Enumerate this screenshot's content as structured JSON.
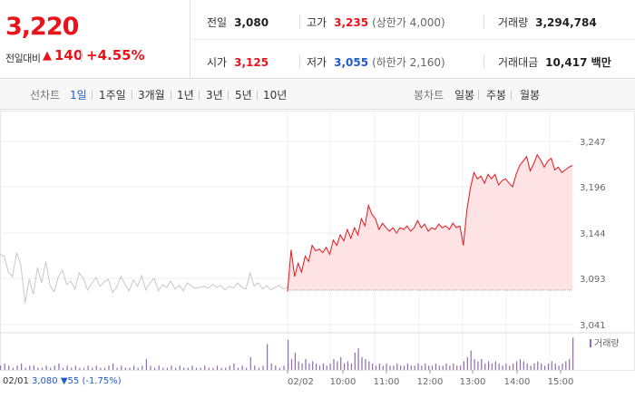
{
  "price": {
    "current": "3,220",
    "change_label": "전일대비",
    "change_arrow": "▲",
    "change_value": "140",
    "change_pct": "+4.55%"
  },
  "stats": {
    "prev_close_label": "전일",
    "prev_close": "3,080",
    "high_label": "고가",
    "high": "3,235",
    "upper_limit": "(상한가 4,000)",
    "volume_label": "거래량",
    "volume": "3,294,784",
    "open_label": "시가",
    "open": "3,125",
    "low_label": "저가",
    "low": "3,055",
    "lower_limit": "(하한가 2,160)",
    "turnover_label": "거래대금",
    "turnover": "10,417 백만"
  },
  "line_tabs": {
    "title": "선차트",
    "items": [
      "1일",
      "1주일",
      "3개월",
      "1년",
      "3년",
      "5년",
      "10년"
    ],
    "active": "1일"
  },
  "candle_tabs": {
    "title": "봉차트",
    "items": [
      "일봉",
      "주봉",
      "월봉"
    ]
  },
  "prev_day_legend": {
    "date": "02/01",
    "close": "3,080",
    "arrow": "▼",
    "change": "55",
    "pct": "(-1.75%)"
  },
  "colors": {
    "up": "#e8141c",
    "down": "#1f5bd1",
    "prev_line": "#c8c8c8",
    "fill": "#fde3e3",
    "volume": "#8e6bb3"
  },
  "chart_data": {
    "type": "line",
    "title": "",
    "y_ticks": [
      3041,
      3093,
      3144,
      3196,
      3247
    ],
    "y_tick_labels": [
      "3,041",
      "3,093",
      "3,144",
      "3,196",
      "3,247"
    ],
    "ylim": [
      3041,
      3247
    ],
    "x_ticks": [
      "02/01",
      "02/02",
      "10:00",
      "11:00",
      "12:00",
      "13:00",
      "14:00",
      "15:00"
    ],
    "baseline": 3080,
    "legend_volume": "거래량",
    "series": [
      {
        "name": "02/01",
        "style": "grey",
        "values": [
          3120,
          3118,
          3100,
          3095,
          3122,
          3108,
          3065,
          3092,
          3075,
          3105,
          3088,
          3112,
          3085,
          3078,
          3095,
          3102,
          3086,
          3090,
          3081,
          3099,
          3093,
          3080,
          3087,
          3094,
          3084,
          3089,
          3092,
          3077,
          3083,
          3095,
          3086,
          3079,
          3091,
          3084,
          3096,
          3080,
          3088,
          3093,
          3079,
          3086,
          3083,
          3090,
          3081,
          3085,
          3079,
          3088,
          3084,
          3082,
          3083,
          3084,
          3082,
          3086,
          3083,
          3085,
          3080,
          3084,
          3082,
          3088,
          3083,
          3081,
          3099,
          3084,
          3088,
          3081,
          3085,
          3080,
          3083,
          3085,
          3081,
          3083
        ]
      },
      {
        "name": "02/02",
        "style": "red",
        "values": [
          3078,
          3125,
          3095,
          3110,
          3100,
          3118,
          3112,
          3130,
          3124,
          3126,
          3122,
          3128,
          3120,
          3136,
          3130,
          3142,
          3135,
          3148,
          3138,
          3150,
          3142,
          3160,
          3152,
          3175,
          3165,
          3160,
          3148,
          3155,
          3150,
          3146,
          3150,
          3144,
          3150,
          3148,
          3152,
          3146,
          3150,
          3158,
          3150,
          3154,
          3146,
          3150,
          3148,
          3154,
          3150,
          3152,
          3148,
          3155,
          3150,
          3152,
          3130,
          3170,
          3195,
          3212,
          3205,
          3208,
          3200,
          3210,
          3205,
          3210,
          3198,
          3203,
          3205,
          3200,
          3196,
          3210,
          3220,
          3225,
          3230,
          3214,
          3222,
          3232,
          3226,
          3218,
          3225,
          3228,
          3215,
          3218,
          3212,
          3215,
          3218,
          3220
        ]
      }
    ],
    "volume": {
      "prev": [
        2,
        3,
        2,
        1,
        2,
        3,
        1,
        2,
        2,
        1,
        1,
        2,
        1,
        2,
        3,
        1,
        2,
        1,
        2,
        1,
        1,
        2,
        1,
        2,
        1,
        1,
        2,
        3,
        1,
        2,
        1,
        1,
        2,
        1,
        2,
        5,
        2,
        1,
        2,
        1,
        1,
        2,
        1,
        2,
        1,
        1,
        2,
        1,
        1,
        2,
        1,
        1,
        2,
        1,
        1,
        2,
        3,
        1,
        2,
        1,
        6,
        2,
        1,
        2,
        12,
        3,
        2,
        1,
        2,
        3
      ],
      "today": [
        14,
        5,
        8,
        4,
        3,
        5,
        3,
        4,
        3,
        2,
        3,
        2,
        3,
        5,
        4,
        6,
        3,
        4,
        3,
        8,
        10,
        6,
        5,
        4,
        3,
        2,
        3,
        2,
        3,
        2,
        2,
        3,
        2,
        2,
        3,
        2,
        2,
        3,
        2,
        3,
        2,
        2,
        3,
        2,
        2,
        3,
        2,
        3,
        2,
        2,
        4,
        6,
        9,
        5,
        4,
        5,
        3,
        4,
        3,
        4,
        3,
        2,
        3,
        2,
        3,
        4,
        5,
        4,
        3,
        2,
        3,
        4,
        3,
        2,
        3,
        4,
        3,
        2,
        3,
        4,
        5,
        15
      ]
    }
  }
}
